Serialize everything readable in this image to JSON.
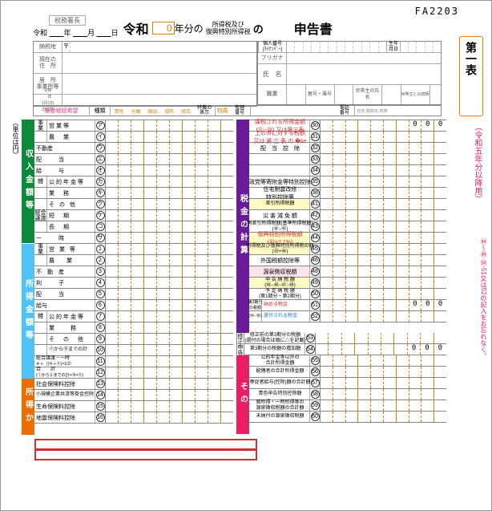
{
  "form_id": "FA2203",
  "header": {
    "zeimu_chief": "税務署長",
    "date_prefix": "令和",
    "year": "年",
    "month": "月",
    "day": "日",
    "reiwa": "令和",
    "year_value": "0",
    "year_suffix": "年分の",
    "tax_types": "所得税及び\n復興特別所得税",
    "no": "の",
    "shinkoku": "申告書"
  },
  "info": {
    "nouzei_chi": "納税地",
    "yubin": "〒",
    "kojin": "個人番号\n(ﾏｲﾅﾝﾊﾞｰ)",
    "seinen": "生年\n月日",
    "genjusho": "現在の\n住　所",
    "mataha": "又 は",
    "kyosho": "居　所\n事業所等",
    "furigana": "フリガナ",
    "shimei": "氏　名",
    "r1y1": "令和\n　年\n1月1日\nの住所",
    "shokugyo": "職業",
    "yago": "屋号・雅号",
    "setainushi": "世帯主の氏名",
    "tsudukigara": "世帯主との続柄"
  },
  "kibou": {
    "left": "振替継続希望",
    "shurui": "種類",
    "bands": [
      "青色",
      "分離",
      "国出",
      "損失",
      "修正"
    ],
    "tokunou": "特農の\n表示",
    "tokunou2": "特農",
    "seiri": "整理\n番号",
    "denwa": "電話\n番号",
    "denwa_sub": "自宅·勤務先·携帯"
  },
  "unit": "（単位は円）",
  "left_section1": {
    "title": "収入金額等",
    "groups": {
      "jigyou": "事\n業",
      "soukatsu": "総合\n譲渡",
      "kyuuyo": "給与"
    },
    "rows": [
      {
        "g": "事\n業",
        "l": "営業等",
        "k": "ア"
      },
      {
        "g": "",
        "l": "農　業",
        "k": "イ"
      },
      {
        "l2": "不動産",
        "k": "ウ"
      },
      {
        "l2": "配　　　当",
        "k": "エ"
      },
      {
        "l2": "給　　　与",
        "k": "オ"
      },
      {
        "g": "雑",
        "l": "公的年金等",
        "k": "カ"
      },
      {
        "g": "",
        "l": "業　務",
        "k": "キ"
      },
      {
        "g": "",
        "l": "そ の 他",
        "k": "ク"
      },
      {
        "g": "総合\n譲渡",
        "l": "短　期",
        "k": "ケ"
      },
      {
        "g": "",
        "l": "長　期",
        "k": "コ"
      },
      {
        "l2": "一　　　時",
        "k": "サ"
      }
    ]
  },
  "left_section2": {
    "title": "所得金額等",
    "rows": [
      {
        "g": "事\n業",
        "l": "営 業 等",
        "n": "1"
      },
      {
        "g": "",
        "l": "農　 業",
        "n": "2"
      },
      {
        "l2": "不　動　産",
        "n": "3"
      },
      {
        "l2": "利　　　子",
        "n": "4"
      },
      {
        "l2": "配　　　当",
        "n": "5"
      },
      {
        "l2": "給与",
        "n": "6"
      },
      {
        "g": "雑",
        "l": "公的年金等",
        "n": "7"
      },
      {
        "g": "",
        "l": "業　　務",
        "n": "8"
      },
      {
        "g": "",
        "l": "そ　の　他",
        "n": "9"
      },
      {
        "g": "",
        "l": "⑦から⑨までの計",
        "n": "10",
        "sm": true
      },
      {
        "l2": "総合譲渡・一時",
        "sub": "⑨＋｛(⑩＋⑪)×1/2｝",
        "n": "11",
        "sm": true
      },
      {
        "l2": "合　　計",
        "sub": "(①から⑥までの計+⑩+⑪)",
        "n": "12",
        "sm": true
      }
    ]
  },
  "left_section3": {
    "title": "所得か",
    "rows": [
      {
        "l2": "社会保険料控除",
        "n": "13"
      },
      {
        "l2": "小規模企業共済等掛金控除",
        "n": "14",
        "sm": true
      },
      {
        "l2": "生命保険料控除",
        "n": "15"
      },
      {
        "l2": "地震保険料控除",
        "n": "16"
      }
    ]
  },
  "right_section1": {
    "title": "税金の計算",
    "rows": [
      {
        "l": "課税される所得金額\n(⑫−㉙) 又は第三表",
        "n": "30",
        "red": true,
        "zeros": true
      },
      {
        "l": "上の㉚に対する税額\n又は 第 三 表 の �ke",
        "n": "31",
        "red": true
      },
      {
        "l": "配　当　控　除",
        "n": "32"
      },
      {
        "l": "　",
        "n": "33"
      },
      {
        "l": "　",
        "n": "34",
        "split": true
      },
      {
        "l": "政党等寄附金等特別控除",
        "n": "35",
        "grp": "35-37"
      },
      {
        "l": "住宅耐震改修\n特別控除等",
        "n": "38",
        "grp": "38-40"
      },
      {
        "l": "差引所得税額",
        "n": "41",
        "sm": true,
        "hl": "y",
        "sub": "(㉛-㉜-㉝-㉞-㉟-㊱-㊲-㊳-㊴-㊵)"
      },
      {
        "l": "災 害 減 免 額",
        "n": "42"
      },
      {
        "l": "再差引所得税額(基準所得税額)\n(㊶−㊷)",
        "n": "43",
        "sm": true
      },
      {
        "l": "復興特別所得税額\n(㊸×2.1%)",
        "n": "44",
        "hl": "y",
        "red": true
      },
      {
        "l": "所得税及び復興特別所得税の額\n(㊸+㊹)",
        "n": "45",
        "hl": "y",
        "sm": true
      },
      {
        "l": "外国税額控除等",
        "n": "46",
        "grp": "46-47"
      },
      {
        "l": "源泉徴収税額",
        "n": "48",
        "hl": "p"
      },
      {
        "l": "申 告 納 税 額\n(㊺−㊻−㊼−㊽)",
        "n": "49",
        "hl": "y",
        "sm": true
      },
      {
        "l": "予 定 納 税 額\n(第1期分・第2期分)",
        "n": "50",
        "sm": true
      },
      {
        "l": "第3期分\nの税額",
        "l2": "納める税金",
        "n": "51",
        "red2": true,
        "zeros2": true
      },
      {
        "l": "(㊾−㊿)",
        "l2": "還付される税金",
        "n": "52",
        "blue": true
      }
    ],
    "shusei": "修正申告",
    "shusei_rows": [
      {
        "l": "修正前の第3期分の税額\n(還付の場合は頭に△を記載)",
        "n": "53",
        "sm": true
      },
      {
        "l": "第3期分の税額の増加額",
        "n": "54",
        "sm": true,
        "zeros2": true
      }
    ]
  },
  "right_section2": {
    "title": "その",
    "rows": [
      {
        "l": "公的年金等以外の\n合計所得金額",
        "n": "55",
        "sm": true
      },
      {
        "l": "配偶者の合計所得金額",
        "n": "56",
        "sm": true
      },
      {
        "l": "専従者給与(控除)額の合計額",
        "n": "57",
        "sm": true
      },
      {
        "l": "青色申告特別控除額",
        "n": "58",
        "sm": true
      },
      {
        "l": "雑所得・一時所得等の\n源泉徴収税額の合計額",
        "n": "59",
        "sm": true
      },
      {
        "l": "未納付の源泉徴収税額",
        "n": "60",
        "sm": true
      }
    ]
  },
  "sidebar": {
    "daiichi": "第一表",
    "pink": "（令和五年分以降用）",
    "note": "㊹〜㊾ ㊿·51又は52の記入をお忘れなく。"
  }
}
